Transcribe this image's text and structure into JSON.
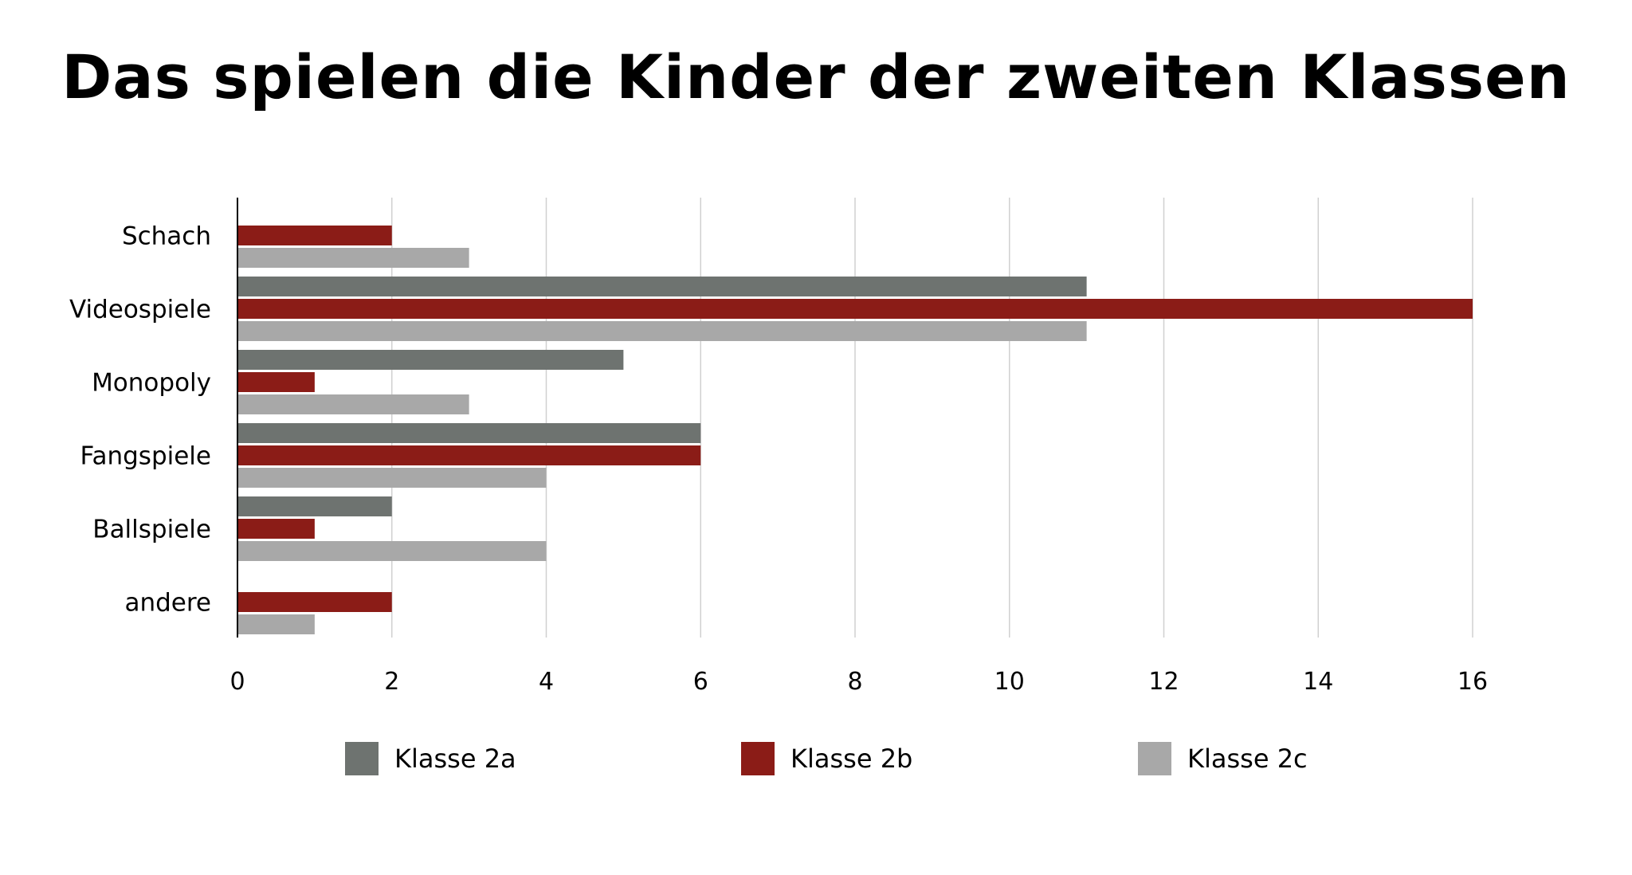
{
  "title": "Das spielen die Kinder der zweiten Klassen",
  "colors": {
    "klasse_2a": "#6e7370",
    "klasse_2b": "#8b1c17",
    "klasse_2c": "#a8a8a8",
    "grid": "#d0d0d0",
    "axis": "#000000"
  },
  "legend": [
    {
      "label": "Klasse 2a",
      "color": "#6e7370"
    },
    {
      "label": "Klasse 2b",
      "color": "#8b1c17"
    },
    {
      "label": "Klasse 2c",
      "color": "#a8a8a8"
    }
  ],
  "chart_data": {
    "type": "bar",
    "orientation": "horizontal",
    "title": "Das spielen die Kinder der zweiten Klassen",
    "categories": [
      "Schach",
      "Videospiele",
      "Monopoly",
      "Fangspiele",
      "Ballspiele",
      "andere"
    ],
    "series": [
      {
        "name": "Klasse 2a",
        "values": [
          0,
          11,
          5,
          6,
          2,
          0
        ]
      },
      {
        "name": "Klasse 2b",
        "values": [
          2,
          16,
          1,
          6,
          1,
          2
        ]
      },
      {
        "name": "Klasse 2c",
        "values": [
          3,
          11,
          3,
          4,
          4,
          1
        ]
      }
    ],
    "xlim": [
      0,
      16
    ],
    "xticks": [
      "0",
      "2",
      "4",
      "6",
      "8",
      "10",
      "12",
      "14",
      "16"
    ],
    "grid": "vertical",
    "legend_position": "bottom"
  }
}
